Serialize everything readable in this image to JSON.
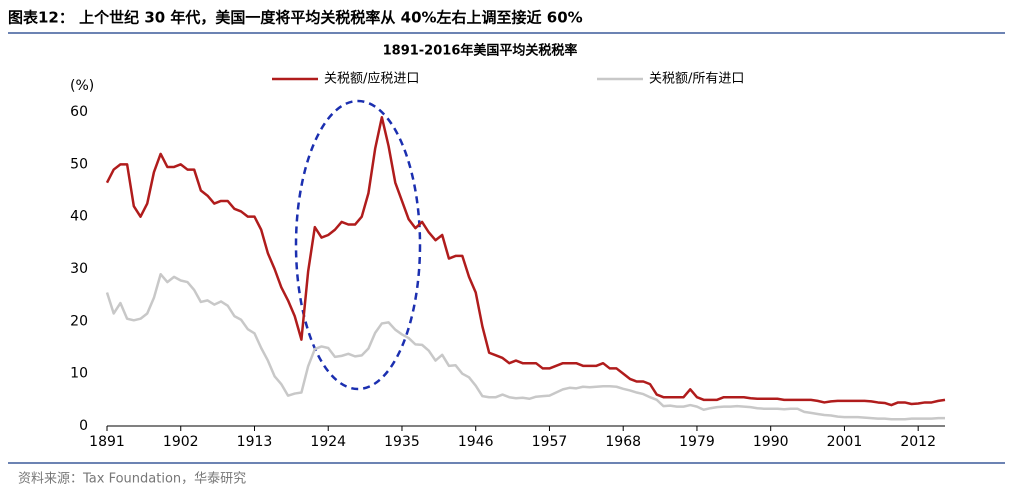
{
  "header": {
    "title": "图表12： 上个世纪 30 年代，美国一度将平均关税税率从 40%左右上调至接近 60%"
  },
  "chart_data": {
    "type": "line",
    "title": "1891-2016年美国平均关税税率",
    "y_label": "(%)",
    "x": [
      1891,
      1892,
      1893,
      1894,
      1895,
      1896,
      1897,
      1898,
      1899,
      1900,
      1901,
      1902,
      1903,
      1904,
      1905,
      1906,
      1907,
      1908,
      1909,
      1910,
      1911,
      1912,
      1913,
      1914,
      1915,
      1916,
      1917,
      1918,
      1919,
      1920,
      1921,
      1922,
      1923,
      1924,
      1925,
      1926,
      1927,
      1928,
      1929,
      1930,
      1931,
      1932,
      1933,
      1934,
      1935,
      1936,
      1937,
      1938,
      1939,
      1940,
      1941,
      1942,
      1943,
      1944,
      1945,
      1946,
      1947,
      1948,
      1949,
      1950,
      1951,
      1952,
      1953,
      1954,
      1955,
      1956,
      1957,
      1958,
      1959,
      1960,
      1961,
      1962,
      1963,
      1964,
      1965,
      1966,
      1967,
      1968,
      1969,
      1970,
      1971,
      1972,
      1973,
      1974,
      1975,
      1976,
      1977,
      1978,
      1979,
      1980,
      1981,
      1982,
      1983,
      1984,
      1985,
      1986,
      1987,
      1988,
      1989,
      1990,
      1991,
      1992,
      1993,
      1994,
      1995,
      1996,
      1997,
      1998,
      1999,
      2000,
      2001,
      2002,
      2003,
      2004,
      2005,
      2006,
      2007,
      2008,
      2009,
      2010,
      2011,
      2012,
      2013,
      2014,
      2015,
      2016
    ],
    "series": [
      {
        "name": "关税额/应税进口",
        "color": "#b01c1c",
        "values": [
          46.5,
          49,
          50,
          50,
          42,
          40,
          42.5,
          48.5,
          52,
          49.5,
          49.5,
          50,
          49,
          49,
          45,
          44,
          42.5,
          43,
          43,
          41.5,
          41,
          40,
          40,
          37.5,
          33,
          30,
          26.5,
          24,
          21,
          16.5,
          29.5,
          38,
          36,
          36.5,
          37.5,
          39,
          38.5,
          38.5,
          40,
          44.5,
          53,
          59,
          53.5,
          46.5,
          43,
          39.5,
          37.8,
          39,
          37,
          35.5,
          36.5,
          32,
          32.5,
          32.5,
          28.5,
          25.5,
          19,
          14,
          13.5,
          13,
          12,
          12.5,
          12,
          12,
          12,
          11,
          11,
          11.5,
          12,
          12,
          12,
          11.5,
          11.5,
          11.5,
          12,
          11,
          11,
          10,
          9,
          8.5,
          8.5,
          8,
          6,
          5.5,
          5.5,
          5.5,
          5.5,
          7,
          5.5,
          5,
          5,
          5,
          5.5,
          5.5,
          5.5,
          5.5,
          5.3,
          5.2,
          5.2,
          5.2,
          5.2,
          5,
          5,
          5,
          5,
          5,
          4.8,
          4.5,
          4.7,
          4.8,
          4.8,
          4.8,
          4.8,
          4.8,
          4.7,
          4.5,
          4.4,
          4,
          4.5,
          4.5,
          4.2,
          4.3,
          4.5,
          4.5,
          4.8,
          5
        ]
      },
      {
        "name": "关税额/所有进口",
        "color": "#c8c8c8",
        "values": [
          25.5,
          21.5,
          23.5,
          20.5,
          20.2,
          20.5,
          21.5,
          24.5,
          29,
          27.5,
          28.5,
          27.8,
          27.5,
          26,
          23.7,
          24,
          23.2,
          23.8,
          23,
          21,
          20.3,
          18.5,
          17.7,
          14.9,
          12.5,
          9.5,
          8,
          5.8,
          6.2,
          6.4,
          11.4,
          14.7,
          15.2,
          14.9,
          13.2,
          13.4,
          13.8,
          13.3,
          13.5,
          14.8,
          17.8,
          19.6,
          19.8,
          18.4,
          17.5,
          16.8,
          15.6,
          15.5,
          14.4,
          12.5,
          13.6,
          11.5,
          11.6,
          10,
          9.3,
          7.7,
          5.7,
          5.5,
          5.5,
          6,
          5.5,
          5.3,
          5.4,
          5.2,
          5.6,
          5.7,
          5.8,
          6.4,
          7,
          7.3,
          7.2,
          7.5,
          7.4,
          7.5,
          7.6,
          7.6,
          7.5,
          7.1,
          6.8,
          6.4,
          6.1,
          5.5,
          5,
          3.8,
          3.9,
          3.7,
          3.7,
          4,
          3.7,
          3.1,
          3.4,
          3.6,
          3.7,
          3.7,
          3.8,
          3.7,
          3.6,
          3.4,
          3.3,
          3.3,
          3.3,
          3.2,
          3.3,
          3.3,
          2.7,
          2.5,
          2.3,
          2.1,
          2,
          1.8,
          1.7,
          1.7,
          1.7,
          1.6,
          1.5,
          1.4,
          1.4,
          1.3,
          1.3,
          1.3,
          1.4,
          1.4,
          1.4,
          1.4,
          1.5,
          1.5
        ]
      }
    ],
    "xlim": [
      1891,
      2016
    ],
    "xticks": [
      1891,
      1902,
      1913,
      1924,
      1935,
      1946,
      1957,
      1968,
      1979,
      1990,
      2001,
      2012
    ],
    "ylim": [
      0,
      60
    ],
    "yticks": [
      0,
      10,
      20,
      30,
      40,
      50,
      60
    ]
  },
  "footer": {
    "source": "资料来源：Tax Foundation，华泰研究"
  }
}
